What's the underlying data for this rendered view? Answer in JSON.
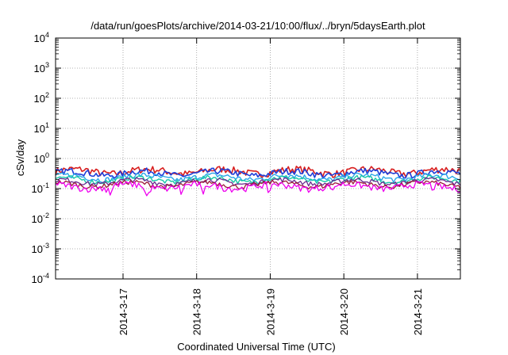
{
  "chart_data": {
    "type": "line",
    "title": "/data/run/goesPlots/archive/2014-03-21/10:00/flux/../bryn/5daysEarth.plot",
    "xlabel": "Coordinated Universal Time (UTC)",
    "ylabel": "cSv/day",
    "yscale": "log",
    "ylim": [
      0.0001,
      10000
    ],
    "y_ticks": [
      {
        "base": "10",
        "exp": "-4",
        "value": 0.0001
      },
      {
        "base": "10",
        "exp": "-3",
        "value": 0.001
      },
      {
        "base": "10",
        "exp": "-2",
        "value": 0.01
      },
      {
        "base": "10",
        "exp": "-1",
        "value": 0.1
      },
      {
        "base": "10",
        "exp": "0",
        "value": 1
      },
      {
        "base": "10",
        "exp": "1",
        "value": 10
      },
      {
        "base": "10",
        "exp": "2",
        "value": 100
      },
      {
        "base": "10",
        "exp": "3",
        "value": 1000
      },
      {
        "base": "10",
        "exp": "4",
        "value": 10000
      }
    ],
    "xlim": [
      "2014-03-16T02:00",
      "2014-03-21T14:00"
    ],
    "x_ticks": [
      {
        "label": "2014-3-17",
        "value": "2014-03-17"
      },
      {
        "label": "2014-3-18",
        "value": "2014-03-18"
      },
      {
        "label": "2014-3-19",
        "value": "2014-03-19"
      },
      {
        "label": "2014-3-20",
        "value": "2014-03-20"
      },
      {
        "label": "2014-3-21",
        "value": "2014-03-21"
      }
    ],
    "grid": true,
    "series": [
      {
        "color": "#d81e1e",
        "typical": 0.38,
        "jitter": 0.09,
        "dips": [],
        "width": 1.6
      },
      {
        "color": "#1f3fd9",
        "typical": 0.33,
        "jitter": 0.08,
        "dips": [],
        "width": 1.6
      },
      {
        "color": "#2aa6e8",
        "typical": 0.24,
        "jitter": 0.07,
        "dips": [],
        "width": 1.4
      },
      {
        "color": "#17c9a8",
        "typical": 0.2,
        "jitter": 0.06,
        "dips": [],
        "width": 1.4
      },
      {
        "color": "#6a2a8f",
        "typical": 0.17,
        "jitter": 0.06,
        "dips": [],
        "width": 1.3
      },
      {
        "color": "#9b1c3a",
        "typical": 0.14,
        "jitter": 0.06,
        "dips": [],
        "width": 1.3
      },
      {
        "color": "#ee00ee",
        "typical": 0.12,
        "jitter": 0.08,
        "dips": [
          {
            "t": "2014-03-16T18:30",
            "y": 0.075
          },
          {
            "t": "2014-03-16T20:00",
            "y": 0.05
          },
          {
            "t": "2014-03-17T07:30",
            "y": 0.045
          },
          {
            "t": "2014-03-17T08:30",
            "y": 0.065
          },
          {
            "t": "2014-03-17T19:00",
            "y": 0.06
          },
          {
            "t": "2014-03-18T02:00",
            "y": 0.05
          },
          {
            "t": "2014-03-18T09:00",
            "y": 0.08
          },
          {
            "t": "2014-03-18T23:30",
            "y": 0.055
          },
          {
            "t": "2014-03-19T20:30",
            "y": 0.085
          },
          {
            "t": "2014-03-21T05:00",
            "y": 0.08
          }
        ],
        "width": 1.3
      }
    ]
  }
}
